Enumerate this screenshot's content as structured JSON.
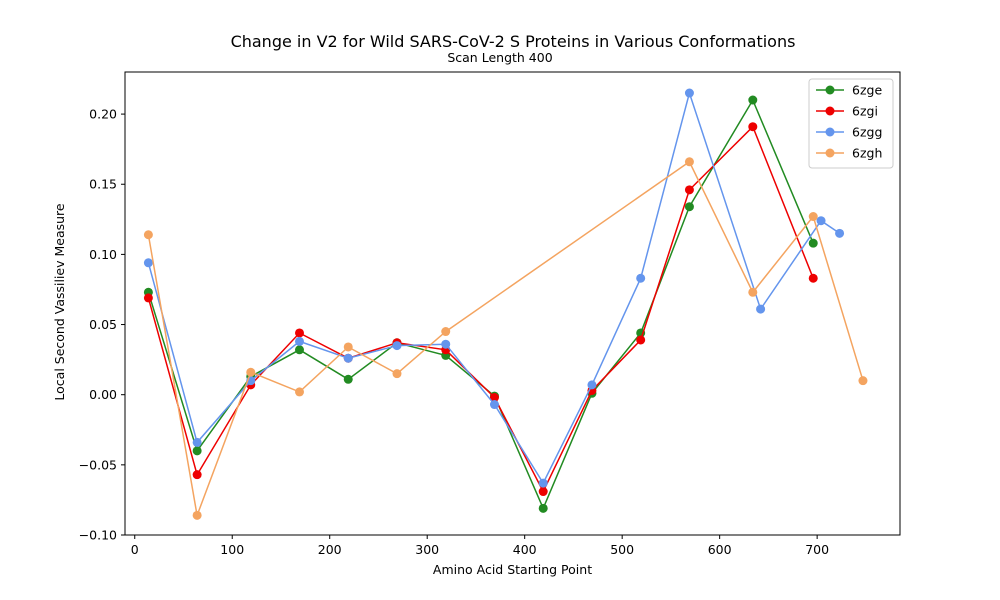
{
  "chart_data": {
    "type": "line",
    "title": "Change in V2 for Wild SARS-CoV-2 S Proteins in Various Conformations",
    "subtitle": "Scan Length 400",
    "xlabel": "Amino Acid Starting Point",
    "ylabel": "Local Second Vassiliev Measure",
    "xlim": [
      -10,
      785
    ],
    "ylim": [
      -0.1,
      0.23
    ],
    "xticks": [
      0,
      100,
      200,
      300,
      400,
      500,
      600,
      700
    ],
    "xtick_labels": [
      "0",
      "100",
      "200",
      "300",
      "400",
      "500",
      "600",
      "700"
    ],
    "yticks": [
      -0.1,
      -0.05,
      0.0,
      0.05,
      0.1,
      0.15,
      0.2
    ],
    "ytick_labels": [
      "−0.10",
      "−0.05",
      "0.00",
      "0.05",
      "0.10",
      "0.15",
      "0.20"
    ],
    "grid": false,
    "legend_position": "top-right",
    "series": [
      {
        "name": "6zge",
        "color": "#228b22",
        "x": [
          14,
          64,
          119,
          169,
          219,
          269,
          319,
          369,
          419,
          469,
          519,
          569,
          634,
          696
        ],
        "y": [
          0.073,
          -0.04,
          0.013,
          0.032,
          0.011,
          0.037,
          0.028,
          -0.001,
          -0.081,
          0.001,
          0.044,
          0.134,
          0.21,
          0.108
        ]
      },
      {
        "name": "6zgi",
        "color": "#ee0000",
        "x": [
          14,
          64,
          119,
          169,
          219,
          269,
          319,
          369,
          419,
          469,
          519,
          569,
          634,
          696
        ],
        "y": [
          0.069,
          -0.057,
          0.007,
          0.044,
          0.026,
          0.037,
          0.032,
          -0.002,
          -0.069,
          0.003,
          0.039,
          0.146,
          0.191,
          0.083
        ]
      },
      {
        "name": "6zgg",
        "color": "#6495ed",
        "x": [
          14,
          64,
          119,
          169,
          219,
          269,
          319,
          369,
          419,
          469,
          519,
          569,
          642,
          704,
          723
        ],
        "y": [
          0.094,
          -0.034,
          0.01,
          0.038,
          0.026,
          0.035,
          0.036,
          -0.007,
          -0.063,
          0.007,
          0.083,
          0.215,
          0.061,
          0.124,
          0.115
        ]
      },
      {
        "name": "6zgh",
        "color": "#f4a460",
        "x": [
          14,
          64,
          119,
          169,
          219,
          269,
          319,
          569,
          634,
          696,
          747
        ],
        "y": [
          0.114,
          -0.086,
          0.016,
          0.002,
          0.034,
          0.015,
          0.045,
          0.166,
          0.073,
          0.127,
          0.01
        ]
      }
    ]
  }
}
